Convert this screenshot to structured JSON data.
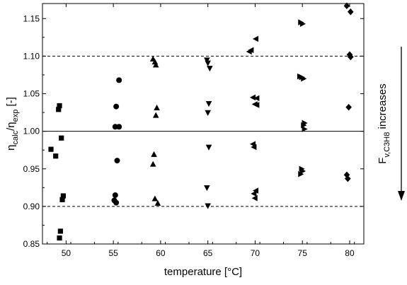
{
  "chart_data": {
    "type": "scatter",
    "xlabel": "temperature [°C]",
    "ylabel": {
      "eta1": "η",
      "sub1": "calc",
      "slash": "/",
      "eta2": "η",
      "sub2": "exp",
      "unit": " [-]"
    },
    "arrow_label": {
      "main": "F",
      "sub": "v,C3H8",
      "rest": " increases"
    },
    "xlim": [
      47.5,
      81.5
    ],
    "ylim": [
      0.85,
      1.17
    ],
    "x_ticks": [
      {
        "v": 50,
        "label": "50"
      },
      {
        "v": 55,
        "label": "55"
      },
      {
        "v": 60,
        "label": "60"
      },
      {
        "v": 65,
        "label": "65"
      },
      {
        "v": 70,
        "label": "70"
      },
      {
        "v": 75,
        "label": "75"
      },
      {
        "v": 80,
        "label": "80"
      }
    ],
    "y_ticks": [
      {
        "v": 0.85,
        "label": "0.85"
      },
      {
        "v": 0.9,
        "label": "0.90"
      },
      {
        "v": 0.95,
        "label": "0.95"
      },
      {
        "v": 1.0,
        "label": "1.00"
      },
      {
        "v": 1.05,
        "label": "1.05"
      },
      {
        "v": 1.1,
        "label": "1.10"
      },
      {
        "v": 1.15,
        "label": "1.15"
      }
    ],
    "reference_lines": [
      {
        "y": 1.1,
        "style": "dashed"
      },
      {
        "y": 1.0,
        "style": "solid"
      },
      {
        "y": 0.9,
        "style": "dashed"
      }
    ],
    "series": [
      {
        "marker": "square",
        "points": [
          [
            49.3,
            1.034
          ],
          [
            49.2,
            1.029
          ],
          [
            49.5,
            0.991
          ],
          [
            48.4,
            0.976
          ],
          [
            48.9,
            0.967
          ],
          [
            49.7,
            0.914
          ],
          [
            49.6,
            0.909
          ],
          [
            49.4,
            0.867
          ],
          [
            49.3,
            0.858
          ]
        ]
      },
      {
        "marker": "circle",
        "points": [
          [
            55.6,
            1.068
          ],
          [
            55.3,
            1.033
          ],
          [
            55.2,
            1.006
          ],
          [
            55.6,
            1.006
          ],
          [
            55.4,
            0.961
          ],
          [
            55.2,
            0.915
          ],
          [
            55.1,
            0.908
          ],
          [
            55.3,
            0.905
          ]
        ]
      },
      {
        "marker": "triangle-up",
        "points": [
          [
            59.2,
            1.096
          ],
          [
            59.4,
            1.092
          ],
          [
            59.5,
            1.088
          ],
          [
            59.6,
            1.031
          ],
          [
            59.5,
            1.021
          ],
          [
            59.3,
            0.969
          ],
          [
            59.2,
            0.956
          ],
          [
            59.4,
            0.91
          ],
          [
            59.7,
            0.904
          ]
        ]
      },
      {
        "marker": "triangle-down",
        "points": [
          [
            64.9,
            1.095
          ],
          [
            65.0,
            1.091
          ],
          [
            65.2,
            1.084
          ],
          [
            65.1,
            1.037
          ],
          [
            65.0,
            1.025
          ],
          [
            65.1,
            0.979
          ],
          [
            64.9,
            0.925
          ],
          [
            65.0,
            0.901
          ]
        ]
      },
      {
        "marker": "triangle-left",
        "points": [
          [
            70.1,
            1.123
          ],
          [
            69.6,
            1.108
          ],
          [
            69.4,
            1.106
          ],
          [
            69.8,
            1.045
          ],
          [
            70.2,
            1.044
          ],
          [
            70.0,
            1.036
          ],
          [
            70.2,
            1.035
          ],
          [
            69.8,
            0.983
          ],
          [
            69.9,
            0.979
          ],
          [
            70.1,
            0.921
          ],
          [
            69.9,
            0.917
          ],
          [
            70.0,
            0.911
          ]
        ]
      },
      {
        "marker": "triangle-right",
        "points": [
          [
            74.8,
            1.145
          ],
          [
            75.0,
            1.143
          ],
          [
            74.7,
            1.073
          ],
          [
            74.9,
            1.072
          ],
          [
            75.1,
            1.07
          ],
          [
            75.2,
            1.011
          ],
          [
            75.1,
            1.008
          ],
          [
            75.2,
            1.003
          ],
          [
            74.9,
            0.95
          ],
          [
            75.0,
            0.947
          ],
          [
            74.8,
            0.943
          ]
        ]
      },
      {
        "marker": "diamond",
        "points": [
          [
            79.7,
            1.167
          ],
          [
            80.1,
            1.159
          ],
          [
            80.0,
            1.102
          ],
          [
            80.1,
            1.099
          ],
          [
            79.9,
            1.032
          ],
          [
            79.7,
            0.942
          ],
          [
            79.8,
            0.937
          ]
        ]
      }
    ],
    "grid": false,
    "legend": "none"
  }
}
